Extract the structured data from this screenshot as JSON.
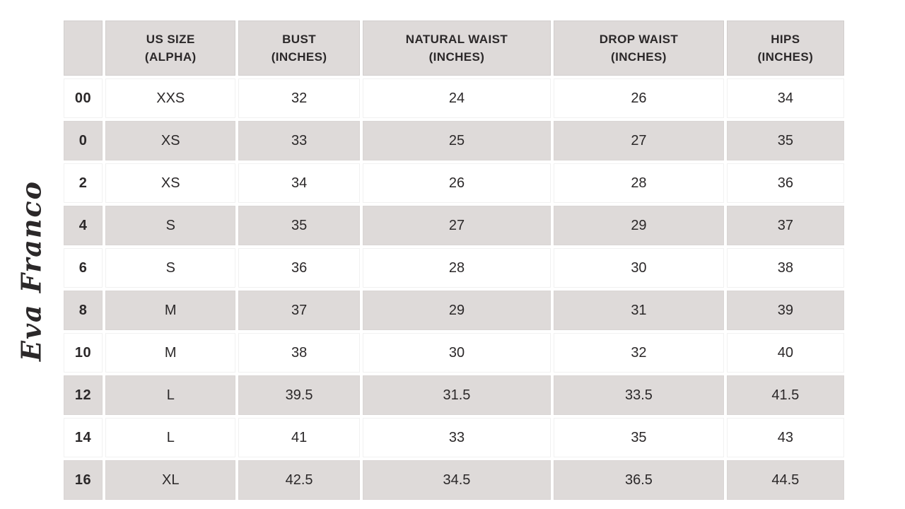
{
  "brand": {
    "logo_text": "Eva Franco"
  },
  "colors": {
    "row_shade": "#dedad9",
    "text": "#2b2829",
    "background": "#ffffff"
  },
  "chart_data": {
    "type": "table",
    "title": "Eva Franco apparel size chart",
    "columns": [
      {
        "line1": "",
        "line2": ""
      },
      {
        "line1": "US SIZE",
        "line2": "(ALPHA)"
      },
      {
        "line1": "BUST",
        "line2": "(INCHES)"
      },
      {
        "line1": "NATURAL WAIST",
        "line2": "(INCHES)"
      },
      {
        "line1": "DROP WAIST",
        "line2": "(INCHES)"
      },
      {
        "line1": "HIPS",
        "line2": "(INCHES)"
      }
    ],
    "column_ids": [
      "us_size_numeric",
      "us_size_alpha",
      "bust_inches",
      "natural_waist_inches",
      "drop_waist_inches",
      "hips_inches"
    ],
    "rows": [
      [
        "00",
        "XXS",
        "32",
        "24",
        "26",
        "34"
      ],
      [
        "0",
        "XS",
        "33",
        "25",
        "27",
        "35"
      ],
      [
        "2",
        "XS",
        "34",
        "26",
        "28",
        "36"
      ],
      [
        "4",
        "S",
        "35",
        "27",
        "29",
        "37"
      ],
      [
        "6",
        "S",
        "36",
        "28",
        "30",
        "38"
      ],
      [
        "8",
        "M",
        "37",
        "29",
        "31",
        "39"
      ],
      [
        "10",
        "M",
        "38",
        "30",
        "32",
        "40"
      ],
      [
        "12",
        "L",
        "39.5",
        "31.5",
        "33.5",
        "41.5"
      ],
      [
        "14",
        "L",
        "41",
        "33",
        "35",
        "43"
      ],
      [
        "16",
        "XL",
        "42.5",
        "34.5",
        "36.5",
        "44.5"
      ]
    ],
    "layout": {
      "header_shaded": true,
      "shaded_row_indices": [
        1,
        3,
        5,
        7,
        9
      ],
      "grid": "white gutters between cells, alternating row shading"
    }
  }
}
